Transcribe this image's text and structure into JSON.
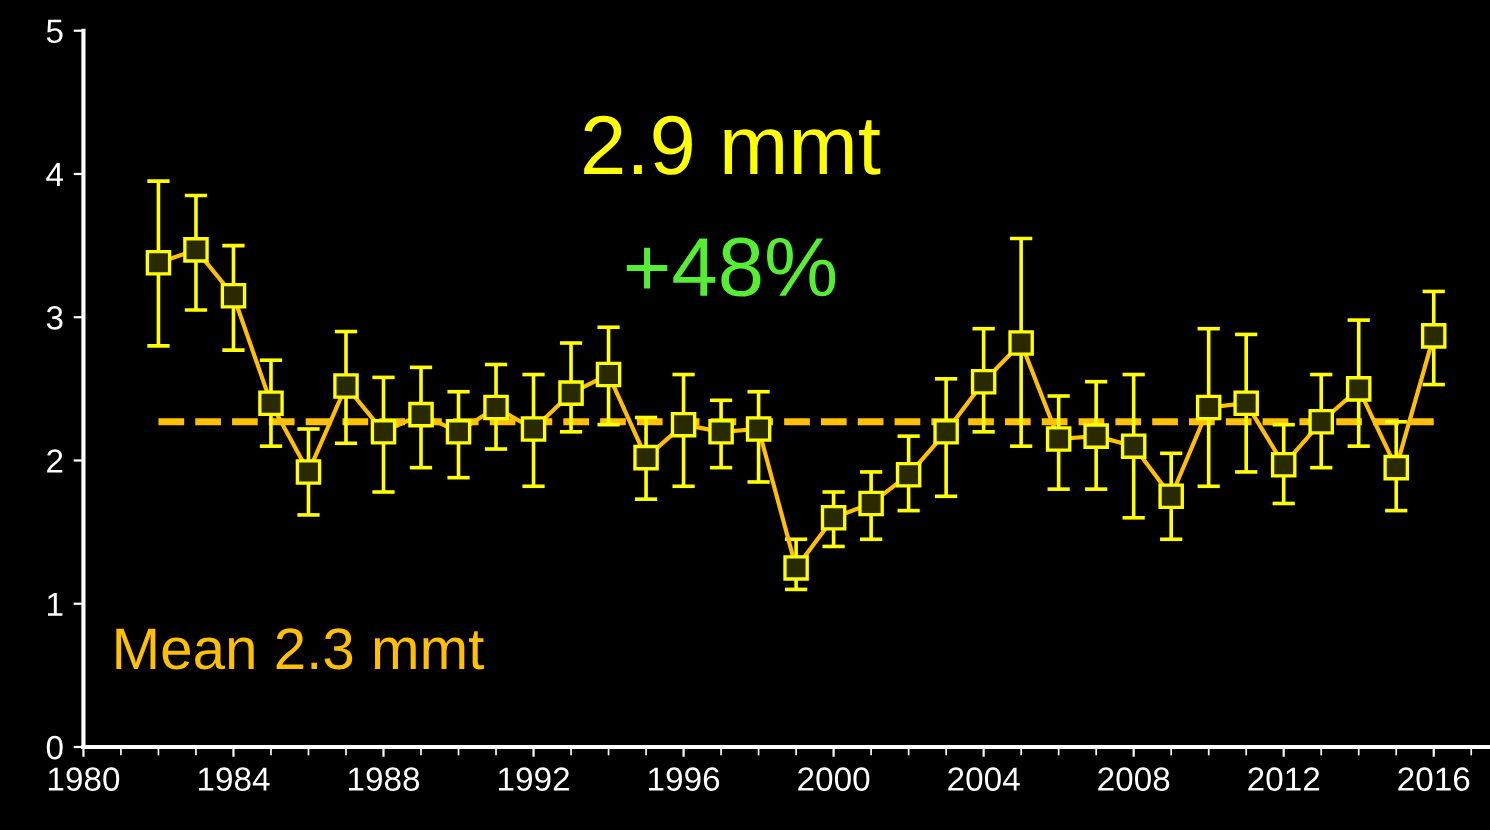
{
  "chart_data": {
    "type": "line",
    "x": [
      1982,
      1983,
      1984,
      1985,
      1986,
      1987,
      1988,
      1989,
      1990,
      1991,
      1992,
      1993,
      1994,
      1995,
      1996,
      1997,
      1998,
      1999,
      2000,
      2001,
      2002,
      2003,
      2004,
      2005,
      2006,
      2007,
      2008,
      2009,
      2010,
      2011,
      2012,
      2013,
      2014,
      2015,
      2016
    ],
    "series": [
      {
        "color": "#ffc000",
        "values": [
          3.38,
          3.47,
          3.15,
          2.4,
          1.92,
          2.52,
          2.2,
          2.32,
          2.2,
          2.37,
          2.22,
          2.47,
          2.6,
          2.02,
          2.25,
          2.2,
          2.22,
          1.25,
          1.6,
          1.7,
          1.9,
          2.2,
          2.55,
          2.82,
          2.15,
          2.17,
          2.1,
          1.75,
          2.37,
          2.4,
          1.97,
          2.27,
          2.5,
          1.95,
          2.87
        ],
        "errors": [
          [
            2.8,
            3.95
          ],
          [
            3.05,
            3.85
          ],
          [
            2.77,
            3.5
          ],
          [
            2.1,
            2.7
          ],
          [
            1.62,
            2.22
          ],
          [
            2.12,
            2.9
          ],
          [
            1.78,
            2.58
          ],
          [
            1.95,
            2.65
          ],
          [
            1.88,
            2.48
          ],
          [
            2.08,
            2.67
          ],
          [
            1.82,
            2.6
          ],
          [
            2.2,
            2.82
          ],
          [
            2.25,
            2.93
          ],
          [
            1.73,
            2.3
          ],
          [
            1.82,
            2.6
          ],
          [
            1.95,
            2.42
          ],
          [
            1.85,
            2.48
          ],
          [
            1.1,
            1.45
          ],
          [
            1.4,
            1.78
          ],
          [
            1.45,
            1.92
          ],
          [
            1.65,
            2.17
          ],
          [
            1.75,
            2.57
          ],
          [
            2.2,
            2.92
          ],
          [
            2.1,
            3.55
          ],
          [
            1.8,
            2.45
          ],
          [
            1.8,
            2.55
          ],
          [
            1.6,
            2.6
          ],
          [
            1.45,
            2.05
          ],
          [
            1.82,
            2.92
          ],
          [
            1.92,
            2.88
          ],
          [
            1.7,
            2.25
          ],
          [
            1.95,
            2.6
          ],
          [
            2.1,
            2.98
          ],
          [
            1.65,
            2.27
          ],
          [
            2.53,
            3.18
          ]
        ]
      }
    ],
    "marker": "square",
    "line_style": "solid",
    "xlim": [
      1980,
      2017.5
    ],
    "xticks": [
      1980,
      1984,
      1988,
      1992,
      1996,
      2000,
      2004,
      2008,
      2012,
      2016
    ],
    "ylim": [
      0,
      5
    ],
    "yticks": [
      0,
      1,
      2,
      3,
      4,
      5
    ],
    "ref_lines": [
      {
        "axis": "y",
        "value": 2.27,
        "label": "Mean 2.3 mmt",
        "color": "#ffc000",
        "line_style": "dashed"
      }
    ],
    "annotations": [
      "2.9 mmt",
      "+48%"
    ],
    "grid": false,
    "legend": false
  }
}
